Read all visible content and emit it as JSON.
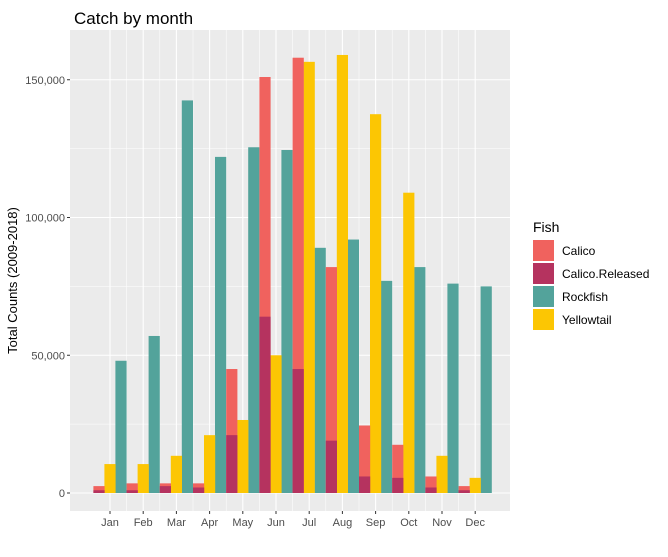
{
  "chart_data": {
    "type": "bar",
    "title": "Catch by month",
    "xlabel": "",
    "ylabel": "Total Counts (2009-2018)",
    "ylim": [
      0,
      165000
    ],
    "yticks": [
      0,
      50000,
      100000,
      150000
    ],
    "ytick_labels": [
      "0",
      "50,000",
      "100,000",
      "150,000"
    ],
    "grid": true,
    "legend_title": "Fish",
    "legend_position": "right",
    "categories": [
      "Jan",
      "Feb",
      "Mar",
      "Apr",
      "May",
      "Jun",
      "Jul",
      "Aug",
      "Sep",
      "Oct",
      "Nov",
      "Dec"
    ],
    "series": [
      {
        "name": "Calico",
        "color": "#F0625E",
        "group": "left",
        "values": [
          2500,
          3500,
          3500,
          3500,
          45000,
          151000,
          158000,
          82000,
          24500,
          17500,
          6000,
          2500
        ]
      },
      {
        "name": "Calico.Released",
        "color": "#B5335F",
        "group": "left",
        "values": [
          1000,
          1000,
          2500,
          2000,
          21000,
          64000,
          45000,
          19000,
          6000,
          5500,
          2000,
          1000
        ]
      },
      {
        "name": "Rockfish",
        "color": "#53A39B",
        "group": "middle",
        "values": [
          48000,
          57000,
          142500,
          122000,
          125500,
          124500,
          89000,
          92000,
          77000,
          82000,
          76000,
          75000
        ]
      },
      {
        "name": "Yellowtail",
        "color": "#FCC603",
        "group": "right",
        "values": [
          10500,
          10500,
          13500,
          21000,
          26500,
          50000,
          156500,
          159000,
          137500,
          109000,
          13500,
          5500
        ]
      }
    ],
    "panel_background": "#EBEBEB",
    "grid_color": "#FFFFFF"
  }
}
